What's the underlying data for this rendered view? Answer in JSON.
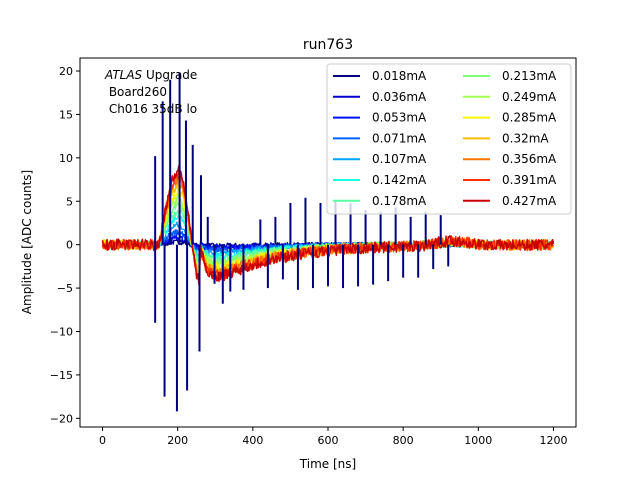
{
  "chart_data": {
    "type": "line",
    "title": "run763",
    "xlabel": "Time [ns]",
    "ylabel": "Amplitude [ADC counts]",
    "xlim": [
      -60,
      1260
    ],
    "ylim": [
      -21,
      21.5
    ],
    "xticks": [
      0,
      200,
      400,
      600,
      800,
      1000,
      1200
    ],
    "yticks": [
      -20,
      -15,
      -10,
      -5,
      0,
      5,
      10,
      15,
      20
    ],
    "annotation": {
      "italic": "ATLAS",
      "line1_rest": " Upgrade",
      "line2": " Board260",
      "line3": " Ch016 35dB lo"
    },
    "legend_location": "upper right",
    "series": [
      {
        "name": "0.018mA",
        "color": "#00007f",
        "peak": 0.3
      },
      {
        "name": "0.036mA",
        "color": "#0000c8",
        "peak": 0.7
      },
      {
        "name": "0.053mA",
        "color": "#0010ff",
        "peak": 1.1
      },
      {
        "name": "0.071mA",
        "color": "#0060ff",
        "peak": 1.5
      },
      {
        "name": "0.107mA",
        "color": "#00a4ff",
        "peak": 2.3
      },
      {
        "name": "0.142mA",
        "color": "#16ffe1",
        "peak": 3.1
      },
      {
        "name": "0.178mA",
        "color": "#58ffa3",
        "peak": 3.9
      },
      {
        "name": "0.213mA",
        "color": "#7dff7a",
        "peak": 4.7
      },
      {
        "name": "0.249mA",
        "color": "#a4ff53",
        "peak": 5.4
      },
      {
        "name": "0.285mA",
        "color": "#f4f802",
        "peak": 6.2
      },
      {
        "name": "0.32mA",
        "color": "#ffba00",
        "peak": 7.0
      },
      {
        "name": "0.356mA",
        "color": "#ff7300",
        "peak": 7.6
      },
      {
        "name": "0.391mA",
        "color": "#ff3000",
        "peak": 8.2
      },
      {
        "name": "0.427mA",
        "color": "#c80000",
        "peak": 8.6
      }
    ],
    "spikes": [
      {
        "t": 140,
        "v": 10.2
      },
      {
        "t": 140,
        "v": -9.0
      },
      {
        "t": 160,
        "v": 16.5
      },
      {
        "t": 165,
        "v": -17.5
      },
      {
        "t": 180,
        "v": 19.0
      },
      {
        "t": 198,
        "v": -19.2
      },
      {
        "t": 205,
        "v": 19.8
      },
      {
        "t": 222,
        "v": 14.3
      },
      {
        "t": 225,
        "v": -16.8
      },
      {
        "t": 240,
        "v": 11.5
      },
      {
        "t": 258,
        "v": -12.3
      },
      {
        "t": 262,
        "v": 8.0
      },
      {
        "t": 280,
        "v": 3.2
      },
      {
        "t": 298,
        "v": -4.5
      },
      {
        "t": 320,
        "v": -6.8
      },
      {
        "t": 340,
        "v": -5.4
      },
      {
        "t": 375,
        "v": -5.2
      },
      {
        "t": 420,
        "v": 2.9
      },
      {
        "t": 440,
        "v": -5.0
      },
      {
        "t": 460,
        "v": 3.2
      },
      {
        "t": 480,
        "v": -4.0
      },
      {
        "t": 500,
        "v": 4.8
      },
      {
        "t": 520,
        "v": -5.2
      },
      {
        "t": 540,
        "v": 5.4
      },
      {
        "t": 560,
        "v": -5.0
      },
      {
        "t": 580,
        "v": 4.8
      },
      {
        "t": 600,
        "v": -4.8
      },
      {
        "t": 620,
        "v": 5.0
      },
      {
        "t": 640,
        "v": -5.0
      },
      {
        "t": 660,
        "v": 4.8
      },
      {
        "t": 680,
        "v": -4.8
      },
      {
        "t": 700,
        "v": 4.0
      },
      {
        "t": 720,
        "v": -4.6
      },
      {
        "t": 740,
        "v": 3.8
      },
      {
        "t": 760,
        "v": -4.2
      },
      {
        "t": 780,
        "v": 4.3
      },
      {
        "t": 800,
        "v": -3.8
      },
      {
        "t": 820,
        "v": 3.2
      },
      {
        "t": 840,
        "v": -3.8
      },
      {
        "t": 860,
        "v": 3.8
      },
      {
        "t": 880,
        "v": -2.8
      },
      {
        "t": 900,
        "v": 3.4
      },
      {
        "t": 920,
        "v": -2.5
      }
    ]
  }
}
